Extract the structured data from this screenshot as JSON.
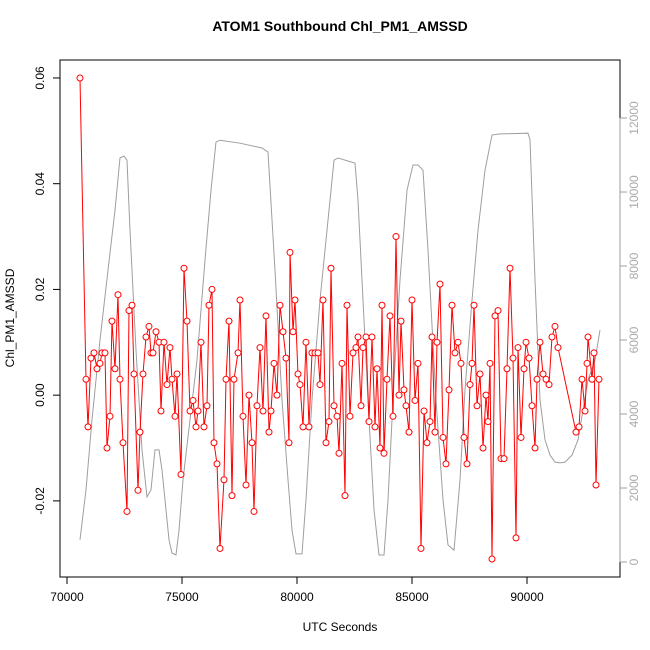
{
  "chart_data": {
    "type": "line",
    "title": "ATOM1 Southbound Chl_PM1_AMSSD",
    "x_label": "UTC Seconds",
    "y_label": "Chl_PM1_AMSSD",
    "xlim": [
      69696,
      94043
    ],
    "xticks": [
      70000,
      75000,
      80000,
      85000,
      90000
    ],
    "ylim": [
      -0.0344,
      0.0634
    ],
    "yticks": [
      -0.02,
      {
        "value": 0,
        "label": "0.00"
      },
      0.02,
      0.04,
      0.06
    ],
    "y2lim": [
      -405,
      13568
    ],
    "y2ticks": [
      0,
      2000,
      4000,
      6000,
      8000,
      10000,
      12000
    ],
    "series": [
      {
        "color": "#9e9e9e",
        "axis": "y2",
        "x": [
          70565,
          70826,
          71087,
          71435,
          71783,
          72087,
          72304,
          72478,
          72609,
          72739,
          73000,
          73261,
          73478,
          73652,
          73826,
          74000,
          74130,
          74261,
          74435,
          74565,
          74739,
          74870,
          75043,
          75348,
          75652,
          76000,
          76261,
          76478,
          76652,
          77522,
          78478,
          78739,
          79043,
          79348,
          79609,
          79783,
          79957,
          80217,
          80391,
          80652,
          81000,
          81348,
          81609,
          81783,
          82522,
          82652,
          82826,
          83087,
          83348,
          83565,
          83783,
          83957,
          84217,
          84478,
          84783,
          85043,
          85261,
          85478,
          85696,
          86043,
          86348,
          86565,
          86826,
          87087,
          87304,
          87609,
          87870,
          88174,
          88478,
          88826,
          90043,
          90130,
          90348,
          90565,
          90783,
          91000,
          91217,
          91435,
          91652,
          91957,
          92217,
          92435,
          92652,
          92957,
          93174
        ],
        "values": [
          600,
          1950,
          3840,
          6000,
          7890,
          9510,
          10920,
          10970,
          10860,
          8970,
          5730,
          3030,
          1760,
          1950,
          3030,
          3030,
          2490,
          1680,
          600,
          240,
          190,
          860,
          2220,
          3840,
          5460,
          8160,
          10050,
          11350,
          11400,
          11320,
          11190,
          11080,
          7890,
          4380,
          2220,
          860,
          220,
          220,
          1680,
          4380,
          7080,
          9240,
          10860,
          10920,
          10780,
          9780,
          7620,
          4380,
          1410,
          190,
          190,
          1680,
          4920,
          7620,
          10050,
          10730,
          10730,
          10590,
          8430,
          4380,
          1680,
          460,
          320,
          2220,
          4650,
          7080,
          8970,
          10590,
          11540,
          11570,
          11590,
          11410,
          7620,
          4380,
          3300,
          2890,
          2700,
          2680,
          2700,
          2890,
          3300,
          4110,
          4920,
          5460,
          6270
        ]
      },
      {
        "color": "#ff0000",
        "markers": true,
        "x": [
          70565,
          70826,
          70913,
          71043,
          71174,
          71304,
          71435,
          71522,
          71652,
          71739,
          71870,
          71957,
          72087,
          72217,
          72304,
          72435,
          72609,
          72696,
          72826,
          72913,
          73087,
          73174,
          73304,
          73435,
          73565,
          73652,
          73739,
          73870,
          74000,
          74087,
          74217,
          74348,
          74478,
          74565,
          74696,
          74783,
          74957,
          75087,
          75217,
          75348,
          75478,
          75609,
          75696,
          75826,
          75957,
          76087,
          76174,
          76304,
          76391,
          76522,
          76652,
          76826,
          76913,
          77043,
          77174,
          77261,
          77435,
          77522,
          77652,
          77783,
          77913,
          78043,
          78130,
          78261,
          78391,
          78522,
          78652,
          78783,
          78870,
          79000,
          79130,
          79261,
          79391,
          79522,
          79652,
          79696,
          79826,
          79913,
          80043,
          80130,
          80261,
          80391,
          80522,
          80652,
          80783,
          80913,
          81000,
          81130,
          81261,
          81391,
          81478,
          81609,
          81739,
          81826,
          81957,
          82087,
          82174,
          82304,
          82435,
          82565,
          82652,
          82783,
          82870,
          83000,
          83130,
          83261,
          83391,
          83478,
          83609,
          83696,
          83783,
          83913,
          84043,
          84174,
          84304,
          84435,
          84522,
          84652,
          84739,
          84870,
          85000,
          85130,
          85261,
          85391,
          85522,
          85652,
          85783,
          85870,
          86000,
          86087,
          86217,
          86348,
          86478,
          86609,
          86739,
          86870,
          87000,
          87130,
          87261,
          87391,
          87522,
          87609,
          87696,
          87826,
          87957,
          88087,
          88217,
          88304,
          88391,
          88478,
          88609,
          88739,
          88870,
          89000,
          89130,
          89261,
          89391,
          89522,
          89609,
          89739,
          89870,
          89957,
          90087,
          90217,
          90348,
          90435,
          90565,
          90696,
          90826,
          90957,
          91087,
          91217,
          91348,
          92130,
          92261,
          92391,
          92522,
          92609,
          92652,
          92826,
          92913,
          93000,
          93130
        ],
        "values": [
          0.06,
          0.003,
          -0.006,
          0.007,
          0.008,
          0.005,
          0.006,
          0.008,
          0.008,
          -0.01,
          -0.004,
          0.014,
          0.005,
          0.019,
          0.003,
          -0.009,
          -0.022,
          0.016,
          0.017,
          0.004,
          -0.018,
          -0.007,
          0.004,
          0.011,
          0.013,
          0.008,
          0.008,
          0.012,
          0.01,
          -0.003,
          0.01,
          0.002,
          0.009,
          0.003,
          -0.004,
          0.004,
          -0.015,
          0.024,
          0.014,
          -0.003,
          -0.001,
          -0.006,
          -0.003,
          0.01,
          -0.006,
          -0.002,
          0.017,
          0.02,
          -0.009,
          -0.013,
          -0.029,
          -0.016,
          0.003,
          0.014,
          -0.019,
          0.003,
          0.008,
          0.018,
          -0.004,
          -0.017,
          0.0,
          -0.009,
          -0.022,
          -0.002,
          0.009,
          -0.003,
          0.015,
          -0.007,
          -0.003,
          0.006,
          0.0,
          0.017,
          0.012,
          0.007,
          -0.009,
          0.027,
          0.012,
          0.018,
          0.004,
          0.002,
          -0.006,
          0.01,
          -0.006,
          0.008,
          0.008,
          0.008,
          0.002,
          0.018,
          -0.009,
          -0.005,
          0.024,
          -0.002,
          -0.004,
          -0.011,
          0.006,
          -0.019,
          0.017,
          -0.004,
          0.008,
          0.009,
          0.011,
          -0.002,
          0.009,
          0.011,
          -0.005,
          0.011,
          -0.006,
          0.005,
          -0.01,
          0.017,
          -0.011,
          0.003,
          0.015,
          -0.004,
          0.03,
          0.0,
          0.014,
          0.001,
          -0.002,
          -0.007,
          0.018,
          -0.001,
          0.006,
          -0.029,
          -0.003,
          -0.009,
          -0.005,
          0.011,
          -0.007,
          0.01,
          0.021,
          -0.008,
          -0.013,
          0.001,
          0.017,
          0.008,
          0.01,
          0.006,
          -0.008,
          -0.013,
          0.002,
          0.006,
          0.017,
          -0.002,
          0.004,
          -0.01,
          0.0,
          -0.005,
          0.006,
          -0.031,
          0.015,
          0.016,
          -0.012,
          -0.012,
          0.005,
          0.024,
          0.007,
          -0.027,
          0.009,
          -0.008,
          0.005,
          0.01,
          0.007,
          -0.002,
          -0.01,
          0.003,
          0.01,
          0.004,
          0.003,
          0.002,
          0.011,
          0.013,
          0.009,
          -0.007,
          -0.006,
          0.003,
          -0.003,
          0.006,
          0.011,
          0.003,
          0.008,
          -0.017,
          0.003
        ]
      }
    ]
  }
}
